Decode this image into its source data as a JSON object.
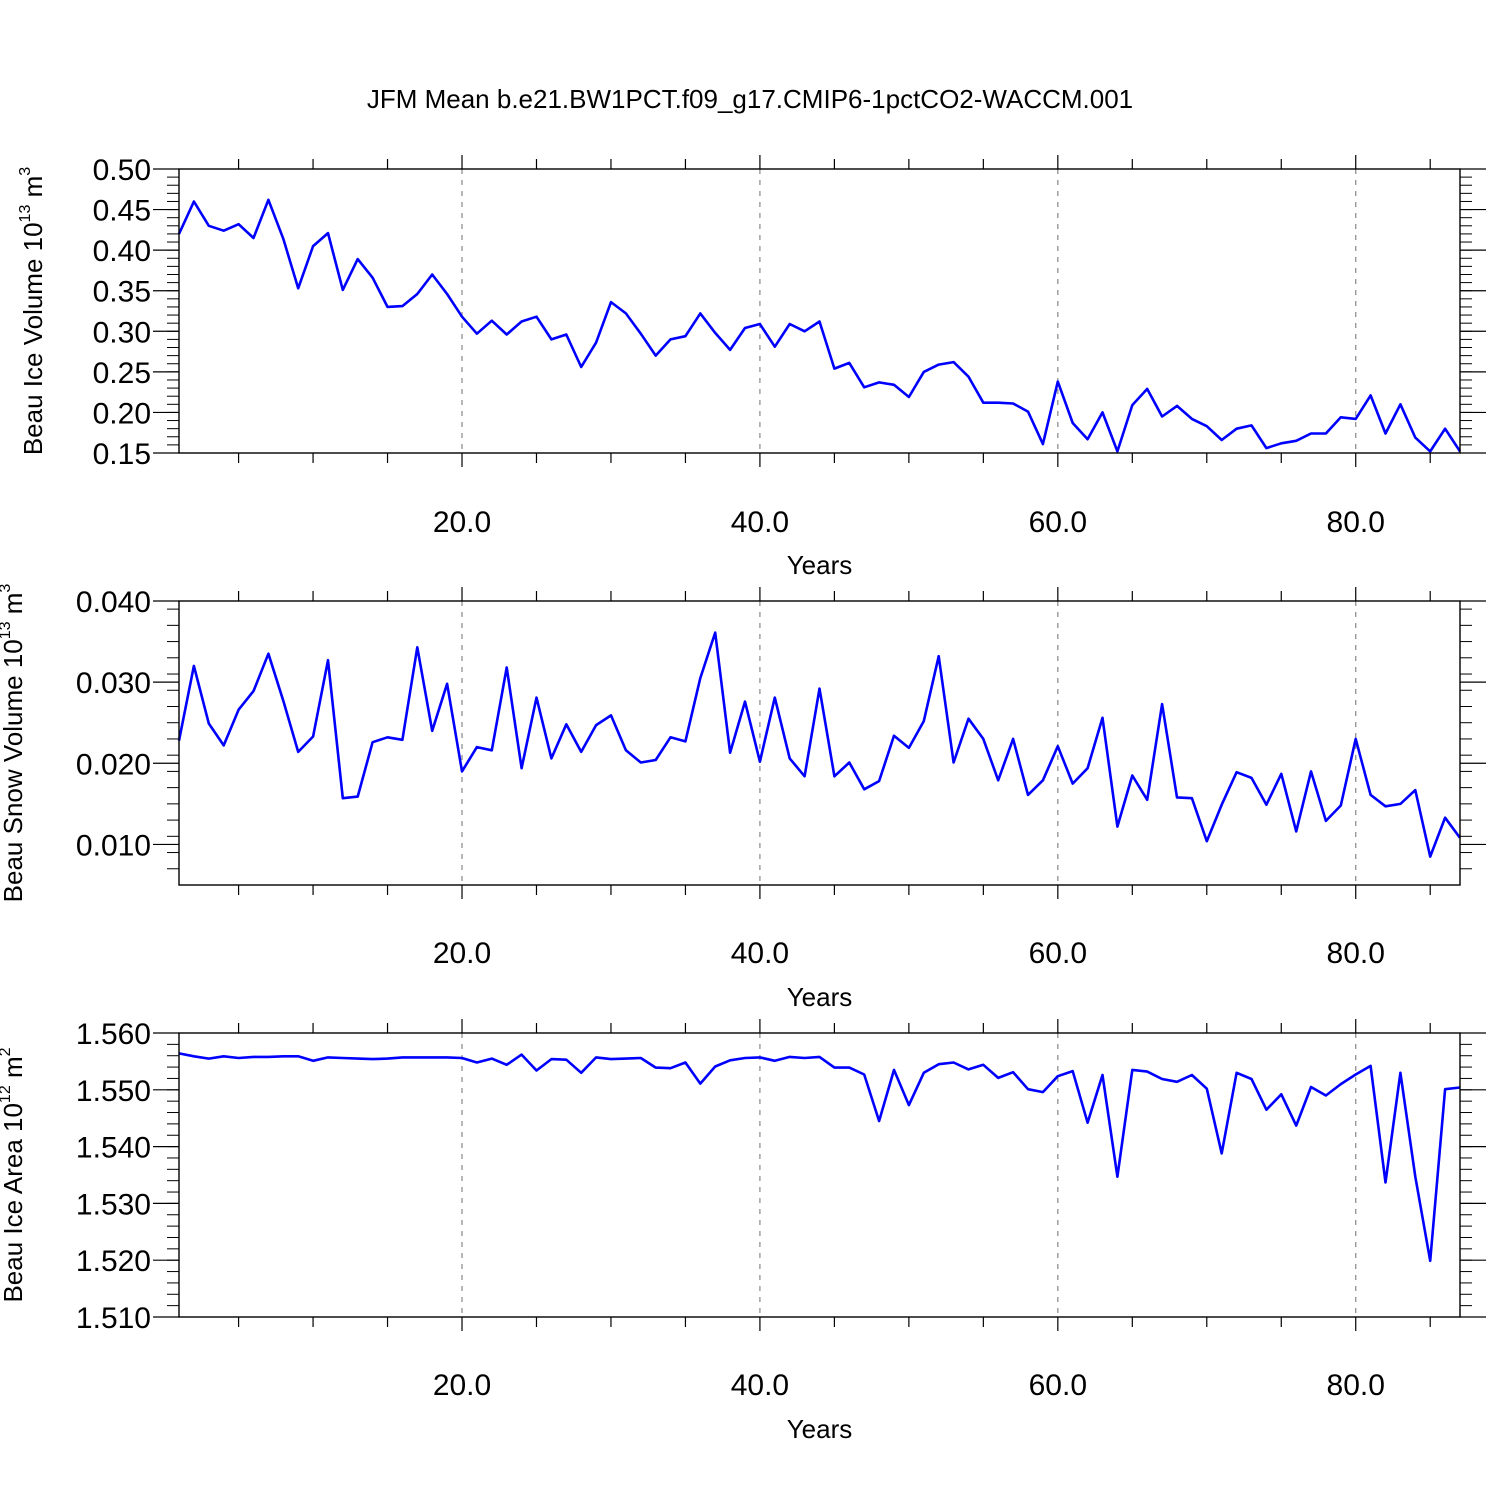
{
  "title": "JFM Mean b.e21.BW1PCT.f09_g17.CMIP6-1pctCO2-WACCM.001",
  "colors": {
    "line": "#0000ff",
    "frame": "#000000",
    "grid": "#888888"
  },
  "chart_data": [
    {
      "type": "line",
      "ylabel": {
        "base": "Beau Ice Volume 10",
        "exp": "13",
        "unit": " m",
        "unit_exp": "3"
      },
      "xlabel": "Years",
      "xlim": [
        1,
        87
      ],
      "ylim": [
        0.15,
        0.5
      ],
      "x_ticks": [
        20,
        40,
        60,
        80
      ],
      "x_tick_labels": [
        "20.0",
        "40.0",
        "60.0",
        "80.0"
      ],
      "y_ticks": [
        0.15,
        0.2,
        0.25,
        0.3,
        0.35,
        0.4,
        0.45,
        0.5
      ],
      "y_tick_labels": [
        "0.15",
        "0.20",
        "0.25",
        "0.30",
        "0.35",
        "0.40",
        "0.45",
        "0.50"
      ],
      "y_minor_step": 0.01,
      "vgrid": true,
      "x_start": 1,
      "values": [
        0.42,
        0.46,
        0.43,
        0.424,
        0.432,
        0.415,
        0.462,
        0.414,
        0.353,
        0.405,
        0.421,
        0.351,
        0.389,
        0.366,
        0.33,
        0.331,
        0.346,
        0.37,
        0.346,
        0.318,
        0.297,
        0.313,
        0.296,
        0.312,
        0.318,
        0.29,
        0.296,
        0.256,
        0.286,
        0.336,
        0.322,
        0.297,
        0.27,
        0.29,
        0.294,
        0.322,
        0.298,
        0.277,
        0.304,
        0.309,
        0.281,
        0.309,
        0.3,
        0.312,
        0.254,
        0.261,
        0.231,
        0.237,
        0.234,
        0.219,
        0.25,
        0.259,
        0.262,
        0.244,
        0.212,
        0.212,
        0.211,
        0.201,
        0.161,
        0.238,
        0.187,
        0.167,
        0.2,
        0.152,
        0.209,
        0.229,
        0.195,
        0.208,
        0.192,
        0.183,
        0.166,
        0.18,
        0.184,
        0.156,
        0.162,
        0.165,
        0.174,
        0.174,
        0.194,
        0.192,
        0.221,
        0.174,
        0.21,
        0.169,
        0.152,
        0.18,
        0.152
      ]
    },
    {
      "type": "line",
      "ylabel": {
        "base": "Beau Snow Volume 10",
        "exp": "13",
        "unit": " m",
        "unit_exp": "3"
      },
      "xlabel": "Years",
      "xlim": [
        1,
        87
      ],
      "ylim": [
        0.005,
        0.04
      ],
      "x_ticks": [
        20,
        40,
        60,
        80
      ],
      "x_tick_labels": [
        "20.0",
        "40.0",
        "60.0",
        "80.0"
      ],
      "y_ticks": [
        0.01,
        0.02,
        0.03,
        0.04
      ],
      "y_tick_labels": [
        "0.010",
        "0.020",
        "0.030",
        "0.040"
      ],
      "y_minor_step": 0.002,
      "vgrid": true,
      "x_start": 1,
      "values": [
        0.0228,
        0.032,
        0.0249,
        0.0222,
        0.0266,
        0.0289,
        0.0335,
        0.0277,
        0.0214,
        0.0233,
        0.0327,
        0.0157,
        0.0159,
        0.0226,
        0.0232,
        0.0229,
        0.0343,
        0.024,
        0.0298,
        0.019,
        0.022,
        0.0216,
        0.0318,
        0.0194,
        0.0281,
        0.0206,
        0.0248,
        0.0214,
        0.0247,
        0.0259,
        0.0216,
        0.0201,
        0.0204,
        0.0232,
        0.0227,
        0.0305,
        0.0361,
        0.0213,
        0.0276,
        0.0202,
        0.0281,
        0.0206,
        0.0184,
        0.0292,
        0.0184,
        0.0201,
        0.0168,
        0.0178,
        0.0234,
        0.0219,
        0.0252,
        0.0332,
        0.0201,
        0.0255,
        0.023,
        0.0179,
        0.023,
        0.0161,
        0.0179,
        0.0221,
        0.0175,
        0.0194,
        0.0256,
        0.0122,
        0.0185,
        0.0155,
        0.0273,
        0.0158,
        0.0157,
        0.0104,
        0.0149,
        0.0189,
        0.0182,
        0.0149,
        0.0187,
        0.0116,
        0.019,
        0.0129,
        0.0148,
        0.023,
        0.0161,
        0.0147,
        0.015,
        0.0167,
        0.0085,
        0.0133,
        0.0108
      ]
    },
    {
      "type": "line",
      "ylabel": {
        "base": "Beau Ice Area 10",
        "exp": "12",
        "unit": " m",
        "unit_exp": "2"
      },
      "xlabel": "Years",
      "xlim": [
        1,
        87
      ],
      "ylim": [
        1.51,
        1.56
      ],
      "x_ticks": [
        20,
        40,
        60,
        80
      ],
      "x_tick_labels": [
        "20.0",
        "40.0",
        "60.0",
        "80.0"
      ],
      "y_ticks": [
        1.51,
        1.52,
        1.53,
        1.54,
        1.55,
        1.56
      ],
      "y_tick_labels": [
        "1.510",
        "1.520",
        "1.530",
        "1.540",
        "1.550",
        "1.560"
      ],
      "y_minor_step": 0.002,
      "vgrid": true,
      "x_start": 1,
      "values": [
        1.5564,
        1.5559,
        1.5555,
        1.5559,
        1.5556,
        1.5558,
        1.5558,
        1.5559,
        1.5559,
        1.5551,
        1.5557,
        1.5556,
        1.5555,
        1.5554,
        1.5555,
        1.5557,
        1.5557,
        1.5557,
        1.5557,
        1.5556,
        1.5548,
        1.5555,
        1.5544,
        1.5562,
        1.5534,
        1.5554,
        1.5553,
        1.553,
        1.5557,
        1.5554,
        1.5555,
        1.5556,
        1.5539,
        1.5538,
        1.5548,
        1.5511,
        1.5541,
        1.5552,
        1.5556,
        1.5557,
        1.5551,
        1.5558,
        1.5556,
        1.5558,
        1.5539,
        1.5539,
        1.5527,
        1.5445,
        1.5535,
        1.5473,
        1.553,
        1.5545,
        1.5548,
        1.5536,
        1.5544,
        1.5521,
        1.5531,
        1.5501,
        1.5496,
        1.5524,
        1.5533,
        1.5442,
        1.5526,
        1.5347,
        1.5535,
        1.5532,
        1.5519,
        1.5514,
        1.5526,
        1.5502,
        1.5388,
        1.553,
        1.5519,
        1.5465,
        1.5492,
        1.5437,
        1.5505,
        1.549,
        1.551,
        1.5527,
        1.5542,
        1.5337,
        1.553,
        1.5347,
        1.5199,
        1.5501,
        1.5504
      ]
    }
  ]
}
